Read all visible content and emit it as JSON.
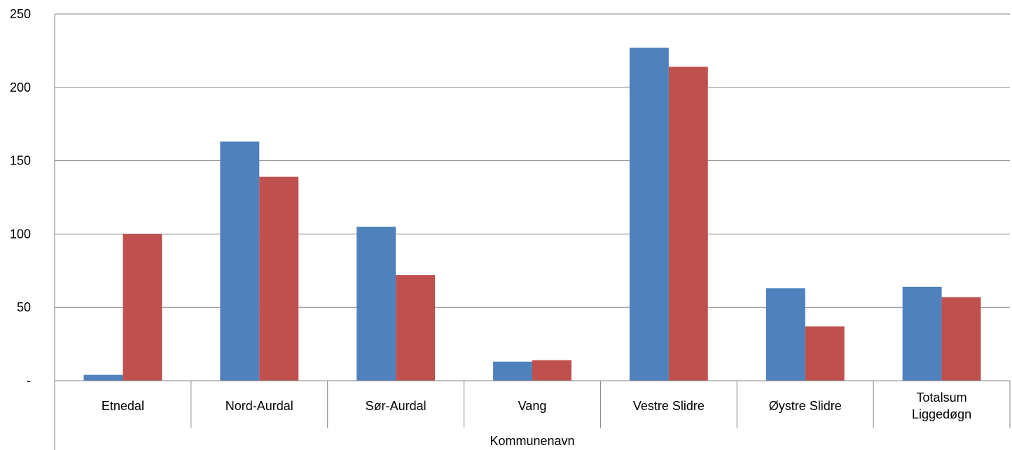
{
  "chart_data": {
    "type": "bar",
    "xlabel": "Kommunenavn",
    "categories": [
      [
        "Etnedal"
      ],
      [
        "Nord-Aurdal"
      ],
      [
        "Sør-Aurdal"
      ],
      [
        "Vang"
      ],
      [
        "Vestre Slidre"
      ],
      [
        "Øystre Slidre"
      ],
      [
        "Totalsum",
        "Liggedøgn"
      ]
    ],
    "series": [
      {
        "color": "#4f81bd",
        "values": [
          4,
          163,
          105,
          13,
          227,
          63,
          64
        ]
      },
      {
        "color": "#c0504d",
        "values": [
          100,
          139,
          72,
          14,
          214,
          37,
          57
        ]
      }
    ],
    "ylim": [
      0,
      250
    ],
    "yticks": [
      0,
      50,
      100,
      150,
      200,
      250
    ],
    "ytick_labels": [
      "-",
      "50",
      "100",
      "150",
      "200",
      "250"
    ],
    "grid": true,
    "legend": "none"
  }
}
